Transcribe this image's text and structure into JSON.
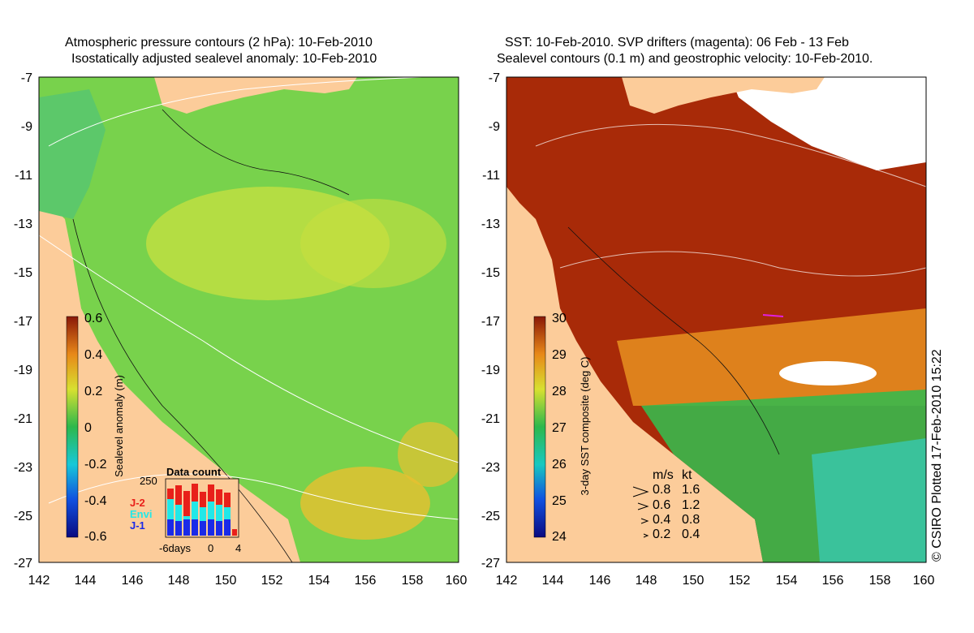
{
  "left_panel": {
    "title_line1": "Atmospheric pressure contours (2 hPa): 10-Feb-2010",
    "title_line2": "Isostatically adjusted sealevel anomaly: 10-Feb-2010",
    "colorbar": {
      "label": "Sealevel anomaly (m)",
      "ticks": [
        "0.6",
        "0.4",
        "0.2",
        "0",
        "-0.2",
        "-0.4",
        "-0.6"
      ]
    },
    "data_count": {
      "title": "Data count",
      "max_label": "250",
      "legend": [
        {
          "name": "J-2",
          "color": "#e8201a"
        },
        {
          "name": "Envi",
          "color": "#22e8e8"
        },
        {
          "name": "J-1",
          "color": "#1a2ae8"
        }
      ],
      "x_labels": [
        "-6days",
        "0",
        "4"
      ]
    }
  },
  "right_panel": {
    "title_line1": "SST: 10-Feb-2010. SVP drifters (magenta): 06 Feb - 13 Feb",
    "title_line2": "Sealevel contours (0.1 m) and geostrophic velocity: 10-Feb-2010.",
    "colorbar": {
      "label": "3-day SST composite (deg C)",
      "ticks": [
        "30",
        "29",
        "28",
        "27",
        "26",
        "25",
        "24"
      ]
    },
    "velocity_key": {
      "header_ms": "m/s",
      "header_kt": "kt",
      "rows": [
        {
          "ms": "0.8",
          "kt": "1.6"
        },
        {
          "ms": "0.6",
          "kt": "1.2"
        },
        {
          "ms": "0.4",
          "kt": "0.8"
        },
        {
          "ms": "0.2",
          "kt": "0.4"
        }
      ]
    }
  },
  "axes": {
    "lat_ticks": [
      "-7",
      "-9",
      "-11",
      "-13",
      "-15",
      "-17",
      "-19",
      "-21",
      "-23",
      "-25",
      "-27"
    ],
    "lon_ticks": [
      "142",
      "144",
      "146",
      "148",
      "150",
      "152",
      "154",
      "156",
      "158",
      "160"
    ]
  },
  "credit": "© CSIRO Plotted 17-Feb-2010 15:22",
  "colors": {
    "land": "#fccc9a",
    "ocean_sla": "#78d24c",
    "ocean_sst": "#a82a08"
  }
}
